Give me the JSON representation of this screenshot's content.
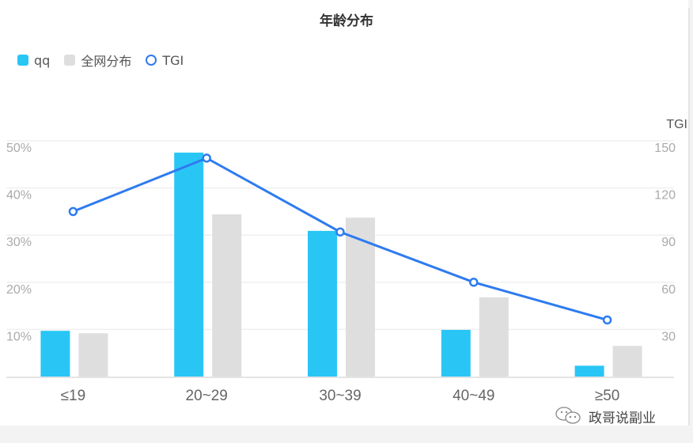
{
  "title": "年龄分布",
  "legend": [
    {
      "label": "qq",
      "type": "square",
      "color": "#29c6f5"
    },
    {
      "label": "全网分布",
      "type": "square",
      "color": "#dedede"
    },
    {
      "label": "TGI",
      "type": "ring",
      "color": "#2e7bf0"
    }
  ],
  "axes": {
    "left_ticks": [
      "50%",
      "40%",
      "30%",
      "20%",
      "10%"
    ],
    "right_title": "TGI",
    "right_ticks": [
      "150",
      "120",
      "90",
      "60",
      "30"
    ]
  },
  "watermark": "政哥说副业",
  "chart_data": {
    "type": "bar",
    "title": "年龄分布",
    "categories": [
      "≤19",
      "20~29",
      "30~39",
      "40~49",
      "≥50"
    ],
    "series": [
      {
        "name": "qq",
        "type": "bar",
        "axis": "left",
        "color": "#29c6f5",
        "values": [
          9.7,
          47.5,
          30.9,
          9.9,
          2.3
        ]
      },
      {
        "name": "全网分布",
        "type": "bar",
        "axis": "left",
        "color": "#dedede",
        "values": [
          9.2,
          34.4,
          33.7,
          16.8,
          6.5
        ]
      },
      {
        "name": "TGI",
        "type": "line",
        "axis": "right",
        "color": "#2e7bf0",
        "values": [
          105,
          139,
          92,
          60,
          36
        ]
      }
    ],
    "xlabel": "",
    "ylabel": "",
    "y2label": "TGI",
    "ylim": [
      0,
      50
    ],
    "y2lim": [
      0,
      150
    ],
    "yticks": [
      "10%",
      "20%",
      "30%",
      "40%",
      "50%"
    ],
    "y2ticks": [
      30,
      60,
      90,
      120,
      150
    ],
    "grid": true,
    "legend_position": "top-left"
  }
}
